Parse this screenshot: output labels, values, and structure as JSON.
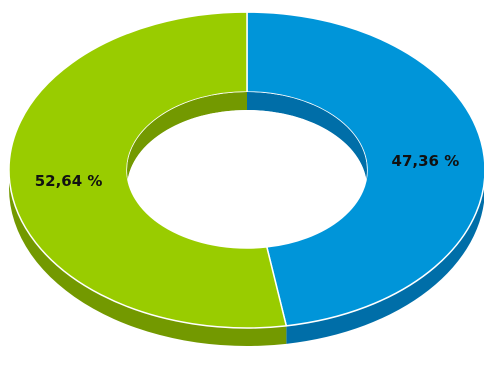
{
  "chart_data": {
    "type": "pie",
    "variant": "donut-3d",
    "slices": [
      {
        "label": "47,36 %",
        "value": 47.36,
        "color": "#0095d9",
        "side_color": "#006ea8"
      },
      {
        "label": "52,64 %",
        "value": 52.64,
        "color": "#99cc00",
        "side_color": "#739900"
      }
    ],
    "start": "top",
    "direction": "clockwise",
    "legend": "none"
  }
}
